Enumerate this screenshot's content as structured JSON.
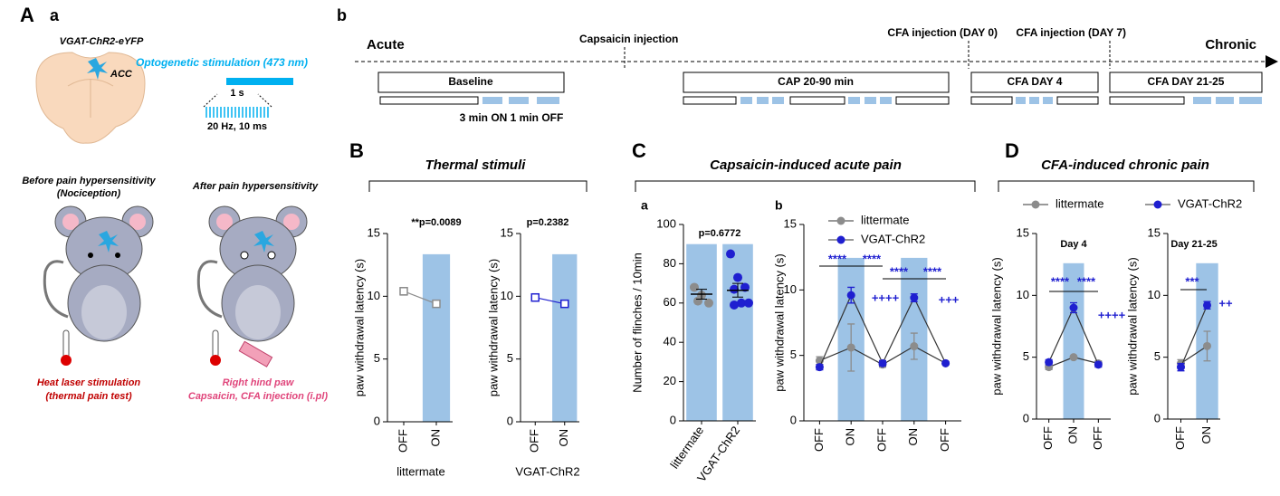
{
  "panel_labels": {
    "A": "A",
    "Aa": "a",
    "Ab": "b",
    "B": "B",
    "C": "C",
    "Ca": "a",
    "Cb": "b",
    "D": "D"
  },
  "panel_a": {
    "construct": "VGAT-ChR2-eYFP",
    "region": "ACC",
    "stimulation": "Optogenetic stimulation (473 nm)",
    "pulse_duration": "1 s",
    "pulse_train": "20 Hz, 10 ms",
    "before_line1": "Before pain hypersensitivity",
    "before_line2": "(Nociception)",
    "after": "After pain hypersensitivity",
    "heat_line1": "Heat laser stimulation",
    "heat_line2": "(thermal pain test)",
    "paw_line1": "Right hind paw",
    "paw_line2": "Capsaicin, CFA injection (i.pl)"
  },
  "timeline": {
    "start": "Acute",
    "end": "Chronic",
    "capsaicin": "Capsaicin injection",
    "cfa0": "CFA injection (DAY 0)",
    "cfa7": "CFA injection (DAY 7)",
    "boxes": [
      "Baseline",
      "CAP 20-90 min",
      "CFA DAY 4",
      "CFA DAY 21-25"
    ],
    "protocol": "3 min ON 1 min OFF"
  },
  "groups": [
    "Thermal stimuli",
    "Capsaicin-induced acute pain",
    "CFA-induced chronic pain"
  ],
  "chart_data": [
    {
      "type": "line",
      "y_label": "paw withdrawal latency (s)",
      "x_label": "littermate",
      "categories": [
        "OFF",
        "ON"
      ],
      "ylim": [
        0,
        15
      ],
      "yticks": [
        0,
        5,
        10,
        15
      ],
      "marker": "square-open",
      "series": [
        {
          "color": "#8c8c8c",
          "values": [
            10.4,
            9.4
          ],
          "errors": [
            0.3,
            0.1
          ]
        }
      ],
      "annotations": [
        "**p=0.0089"
      ]
    },
    {
      "type": "line",
      "y_label": "paw withdrawal latency (s)",
      "x_label": "VGAT-ChR2",
      "categories": [
        "OFF",
        "ON"
      ],
      "ylim": [
        0,
        15
      ],
      "yticks": [
        0,
        5,
        10,
        15
      ],
      "marker": "square-open",
      "series": [
        {
          "color": "#1f1fd0",
          "values": [
            9.9,
            9.4
          ],
          "errors": [
            0.2,
            0.1
          ]
        }
      ],
      "annotations": [
        "p=0.2382"
      ]
    },
    {
      "type": "dot",
      "y_label": "Number of flinches / 10min",
      "categories": [
        "littermate",
        "VGAT-ChR2"
      ],
      "ylim": [
        0,
        100
      ],
      "yticks": [
        0,
        20,
        40,
        60,
        80,
        100
      ],
      "colors": [
        "#8c8c8c",
        "#1f1fd0"
      ],
      "values": [
        64.5,
        66.5
      ],
      "errors": [
        2.5,
        3.5
      ],
      "points": [
        [
          68,
          64,
          60,
          61
        ],
        [
          85,
          73,
          68,
          67,
          60,
          60,
          59
        ]
      ],
      "annotations": [
        "p=0.6772"
      ]
    },
    {
      "type": "line",
      "y_label": "paw withdrawal latency (s)",
      "categories": [
        "OFF",
        "ON",
        "OFF",
        "ON",
        "OFF"
      ],
      "ylim": [
        0,
        15
      ],
      "yticks": [
        0,
        5,
        10,
        15
      ],
      "marker": "circle",
      "series": [
        {
          "name": "littermate",
          "color": "#8c8c8c",
          "values": [
            4.6,
            5.6,
            4.3,
            5.7,
            4.4
          ],
          "errors": [
            0.3,
            1.8,
            0.2,
            1.0,
            0.1
          ]
        },
        {
          "name": "VGAT-ChR2",
          "color": "#1f1fd0",
          "values": [
            4.1,
            9.6,
            4.4,
            9.4,
            4.4
          ],
          "errors": [
            0.2,
            0.6,
            0.2,
            0.3,
            0.1
          ]
        }
      ],
      "annotations": [
        "****",
        "****",
        "****",
        "****",
        "++++",
        "+++"
      ]
    },
    {
      "type": "line",
      "title": "Day 4",
      "y_label": "paw withdrawal latency (s)",
      "categories": [
        "OFF",
        "ON",
        "OFF"
      ],
      "ylim": [
        0,
        15
      ],
      "yticks": [
        0,
        5,
        10,
        15
      ],
      "marker": "circle",
      "series": [
        {
          "name": "littermate",
          "color": "#8c8c8c",
          "values": [
            4.2,
            5.0,
            4.5
          ],
          "errors": [
            0.2,
            0.1,
            0.2
          ]
        },
        {
          "name": "VGAT-ChR2",
          "color": "#1f1fd0",
          "values": [
            4.6,
            9.0,
            4.4
          ],
          "errors": [
            0.2,
            0.4,
            0.2
          ]
        }
      ],
      "annotations": [
        "****",
        "****",
        "++++"
      ]
    },
    {
      "type": "line",
      "title": "Day 21-25",
      "y_label": "paw withdrawal latency (s)",
      "categories": [
        "OFF",
        "ON"
      ],
      "ylim": [
        0,
        15
      ],
      "yticks": [
        0,
        5,
        10,
        15
      ],
      "marker": "circle",
      "series": [
        {
          "color": "#8c8c8c",
          "values": [
            4.5,
            5.9
          ],
          "errors": [
            0.3,
            1.2
          ]
        },
        {
          "color": "#1f1fd0",
          "values": [
            4.2,
            9.2
          ],
          "errors": [
            0.3,
            0.3
          ]
        }
      ],
      "annotations": [
        "***",
        "++"
      ]
    }
  ]
}
